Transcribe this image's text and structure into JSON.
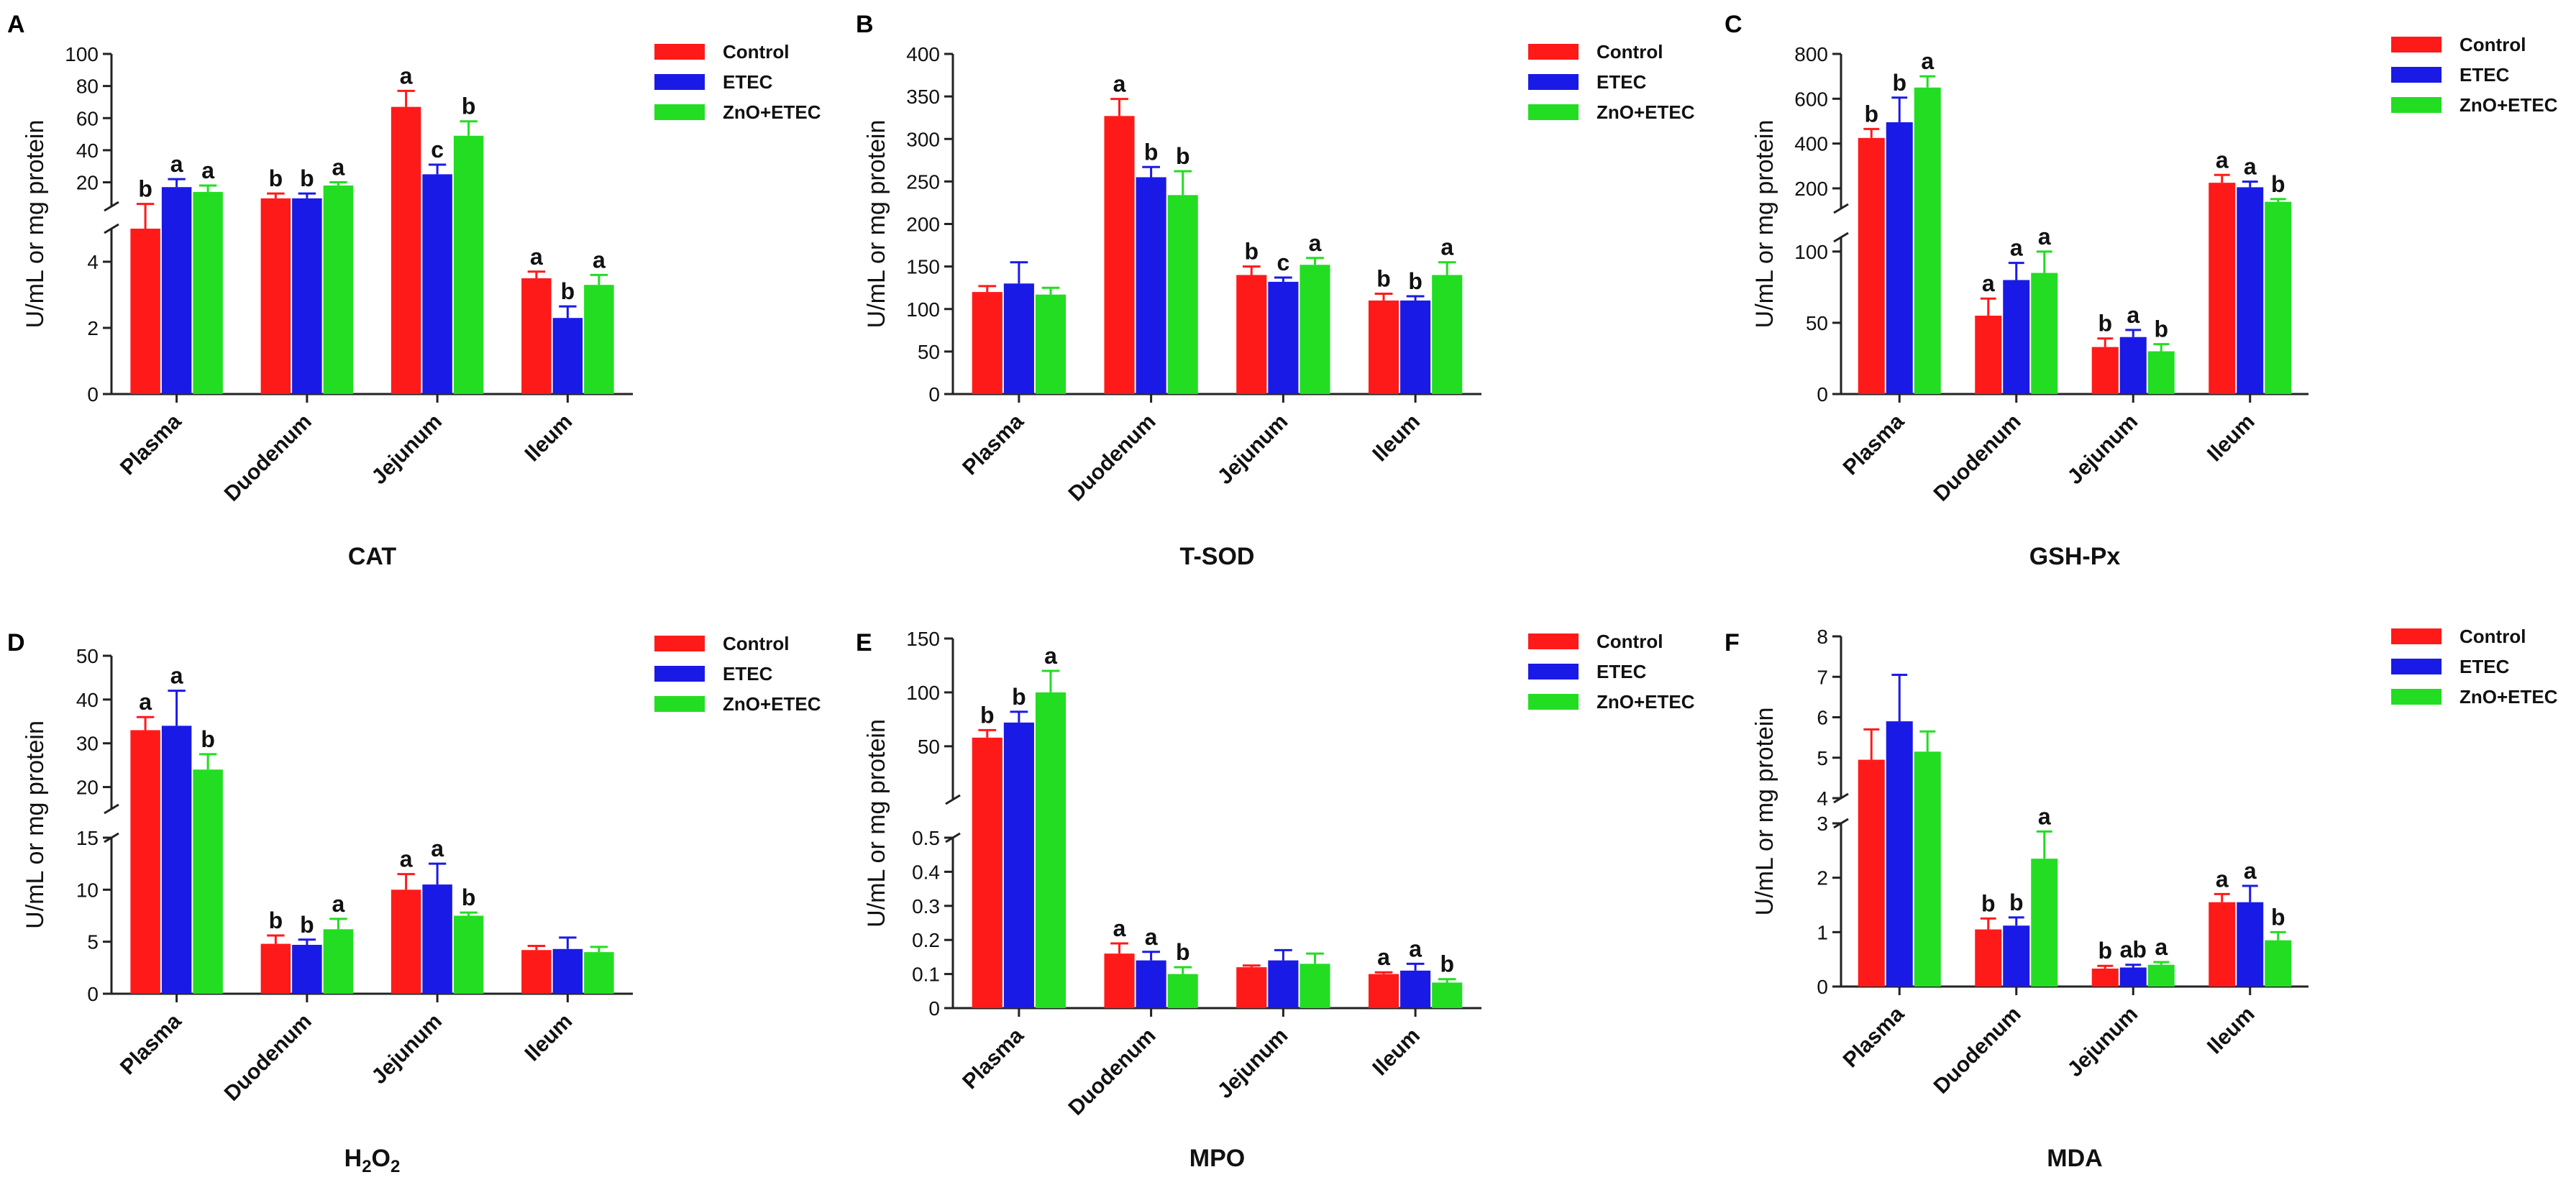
{
  "figure": {
    "ylabel": "U/mL or mg protein",
    "categories": [
      "Plasma",
      "Duodenum",
      "Jejunum",
      "Ileum"
    ],
    "series_names": [
      "Control",
      "ETEC",
      "ZnO+ETEC"
    ],
    "colors": [
      "#ff1a1a",
      "#1a1ae6",
      "#22dd22"
    ]
  },
  "chart_data": [
    {
      "type": "bar",
      "panel": "A",
      "title": "CAT",
      "xlabel": "CAT",
      "ylabel": "U/mL or mg protein",
      "categories": [
        "Plasma",
        "Duodenum",
        "Jejunum",
        "Ileum"
      ],
      "axis_break": true,
      "lower_ylim": [
        0,
        5
      ],
      "lower_ticks": [
        0,
        2,
        4
      ],
      "upper_ylim": [
        5,
        100
      ],
      "upper_ticks": [
        20,
        40,
        60,
        80,
        100
      ],
      "series": [
        {
          "name": "Control",
          "color": "#ff1a1a",
          "values": [
            5,
            10,
            67,
            3.5
          ],
          "errors": [
            1.5,
            3,
            10,
            0.2
          ],
          "letters": [
            "b",
            "b",
            "a",
            "a"
          ]
        },
        {
          "name": "ETEC",
          "color": "#1a1ae6",
          "values": [
            17,
            10,
            25,
            2.3
          ],
          "errors": [
            5,
            3,
            6,
            0.35
          ],
          "letters": [
            "a",
            "b",
            "c",
            "b"
          ]
        },
        {
          "name": "ZnO+ETEC",
          "color": "#22dd22",
          "values": [
            14,
            18,
            49,
            3.3
          ],
          "errors": [
            4,
            2,
            9,
            0.3
          ],
          "letters": [
            "a",
            "a",
            "b",
            "a"
          ]
        }
      ]
    },
    {
      "type": "bar",
      "panel": "B",
      "title": "T-SOD",
      "xlabel": "T-SOD",
      "ylabel": "U/mL or mg protein",
      "categories": [
        "Plasma",
        "Duodenum",
        "Jejunum",
        "Ileum"
      ],
      "axis_break": false,
      "ylim": [
        0,
        400
      ],
      "ticks": [
        0,
        50,
        100,
        150,
        200,
        250,
        300,
        350,
        400
      ],
      "series": [
        {
          "name": "Control",
          "color": "#ff1a1a",
          "values": [
            120,
            327,
            140,
            110
          ],
          "errors": [
            7,
            20,
            10,
            8
          ],
          "letters": [
            "",
            "a",
            "b",
            "b"
          ]
        },
        {
          "name": "ETEC",
          "color": "#1a1ae6",
          "values": [
            130,
            255,
            132,
            110
          ],
          "errors": [
            25,
            12,
            5,
            5
          ],
          "letters": [
            "",
            "b",
            "c",
            "b"
          ]
        },
        {
          "name": "ZnO+ETEC",
          "color": "#22dd22",
          "values": [
            117,
            234,
            152,
            140
          ],
          "errors": [
            8,
            28,
            8,
            15
          ],
          "letters": [
            "",
            "b",
            "a",
            "a"
          ]
        }
      ]
    },
    {
      "type": "bar",
      "panel": "C",
      "title": "GSH-Px",
      "xlabel": "GSH-Px",
      "ylabel": "U/mL or mg protein",
      "categories": [
        "Plasma",
        "Duodenum",
        "Jejunum",
        "Ileum"
      ],
      "axis_break": true,
      "lower_ylim": [
        0,
        110
      ],
      "lower_ticks": [
        0,
        50,
        100
      ],
      "upper_ylim": [
        110,
        800
      ],
      "upper_ticks": [
        200,
        400,
        600,
        800
      ],
      "series": [
        {
          "name": "Control",
          "color": "#ff1a1a",
          "values": [
            425,
            55,
            33,
            225
          ],
          "errors": [
            40,
            12,
            6,
            35
          ],
          "letters": [
            "b",
            "a",
            "b",
            "a"
          ]
        },
        {
          "name": "ETEC",
          "color": "#1a1ae6",
          "values": [
            495,
            80,
            40,
            205
          ],
          "errors": [
            110,
            12,
            5,
            25
          ],
          "letters": [
            "b",
            "a",
            "a",
            "a"
          ]
        },
        {
          "name": "ZnO+ETEC",
          "color": "#22dd22",
          "values": [
            650,
            85,
            30,
            140
          ],
          "errors": [
            50,
            15,
            5,
            12
          ],
          "letters": [
            "a",
            "a",
            "b",
            "b"
          ]
        }
      ]
    },
    {
      "type": "bar",
      "panel": "D",
      "title": "H2O2",
      "xlabel": "H2O2",
      "ylabel": "U/mL or mg protein",
      "categories": [
        "Plasma",
        "Duodenum",
        "Jejunum",
        "Ileum"
      ],
      "axis_break": true,
      "lower_ylim": [
        0,
        15
      ],
      "lower_ticks": [
        0,
        5,
        10,
        15
      ],
      "upper_ylim": [
        15,
        50
      ],
      "upper_ticks": [
        20,
        30,
        40,
        50
      ],
      "series": [
        {
          "name": "Control",
          "color": "#ff1a1a",
          "values": [
            33,
            4.8,
            10,
            4.2
          ],
          "errors": [
            3,
            0.8,
            1.5,
            0.4
          ],
          "letters": [
            "a",
            "b",
            "a",
            ""
          ]
        },
        {
          "name": "ETEC",
          "color": "#1a1ae6",
          "values": [
            34,
            4.7,
            10.5,
            4.3
          ],
          "errors": [
            8,
            0.5,
            2,
            1.1
          ],
          "letters": [
            "a",
            "b",
            "a",
            ""
          ]
        },
        {
          "name": "ZnO+ETEC",
          "color": "#22dd22",
          "values": [
            24,
            6.2,
            7.5,
            4
          ],
          "errors": [
            3.5,
            1,
            0.3,
            0.5
          ],
          "letters": [
            "b",
            "a",
            "b",
            ""
          ]
        }
      ]
    },
    {
      "type": "bar",
      "panel": "E",
      "title": "MPO",
      "xlabel": "MPO",
      "ylabel": "U/mL or mg protein",
      "categories": [
        "Plasma",
        "Duodenum",
        "Jejunum",
        "Ileum"
      ],
      "axis_break": true,
      "lower_ylim": [
        0,
        0.5
      ],
      "lower_ticks": [
        0.0,
        0.1,
        0.2,
        0.3,
        0.4,
        0.5
      ],
      "upper_ylim": [
        0.5,
        150
      ],
      "upper_ticks": [
        50,
        100,
        150
      ],
      "series": [
        {
          "name": "Control",
          "color": "#ff1a1a",
          "values": [
            58,
            0.16,
            0.12,
            0.1
          ],
          "errors": [
            7,
            0.03,
            0.005,
            0.005
          ],
          "letters": [
            "b",
            "a",
            "",
            "a"
          ]
        },
        {
          "name": "ETEC",
          "color": "#1a1ae6",
          "values": [
            72,
            0.14,
            0.14,
            0.11
          ],
          "errors": [
            10,
            0.025,
            0.03,
            0.02
          ],
          "letters": [
            "b",
            "a",
            "",
            "a"
          ]
        },
        {
          "name": "ZnO+ETEC",
          "color": "#22dd22",
          "values": [
            100,
            0.1,
            0.13,
            0.075
          ],
          "errors": [
            20,
            0.02,
            0.03,
            0.01
          ],
          "letters": [
            "a",
            "b",
            "",
            "b"
          ]
        }
      ]
    },
    {
      "type": "bar",
      "panel": "F",
      "title": "MDA",
      "xlabel": "MDA",
      "ylabel": "U/mL or mg protein",
      "categories": [
        "Plasma",
        "Duodenum",
        "Jejunum",
        "Ileum"
      ],
      "axis_break": true,
      "lower_ylim": [
        0,
        3
      ],
      "lower_ticks": [
        0,
        1,
        2,
        3
      ],
      "upper_ylim": [
        4,
        8
      ],
      "upper_ticks": [
        4,
        5,
        6,
        7,
        8
      ],
      "series": [
        {
          "name": "Control",
          "color": "#ff1a1a",
          "values": [
            4.95,
            1.05,
            0.33,
            1.55
          ],
          "errors": [
            0.75,
            0.2,
            0.05,
            0.15
          ],
          "letters": [
            "",
            "b",
            "b",
            "a"
          ]
        },
        {
          "name": "ETEC",
          "color": "#1a1ae6",
          "values": [
            5.9,
            1.12,
            0.35,
            1.55
          ],
          "errors": [
            1.15,
            0.15,
            0.05,
            0.3
          ],
          "letters": [
            "",
            "b",
            "ab",
            "a"
          ]
        },
        {
          "name": "ZnO+ETEC",
          "color": "#22dd22",
          "values": [
            5.15,
            2.35,
            0.4,
            0.85
          ],
          "errors": [
            0.5,
            0.5,
            0.05,
            0.15
          ],
          "letters": [
            "",
            "a",
            "a",
            "b"
          ]
        }
      ]
    }
  ]
}
